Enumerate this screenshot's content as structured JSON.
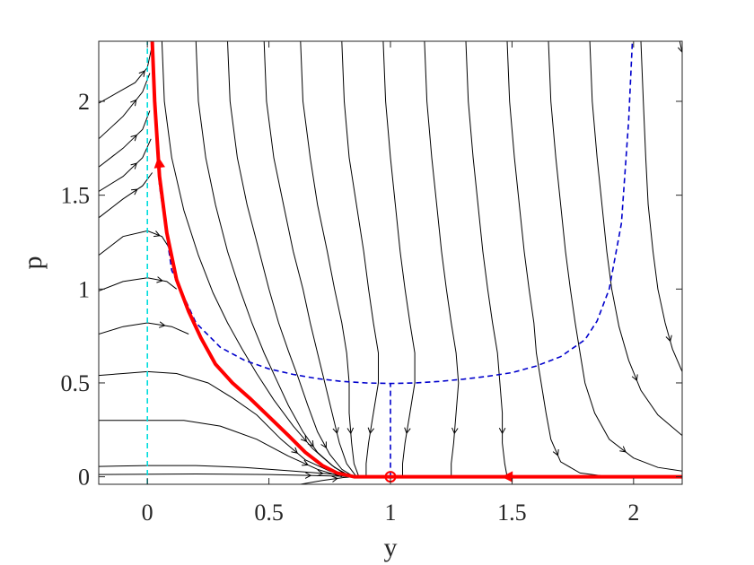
{
  "chart_data": {
    "type": "line",
    "title": "",
    "xlabel": "y",
    "ylabel": "p",
    "xlim": [
      -0.2,
      2.2
    ],
    "ylim": [
      -0.04,
      2.32
    ],
    "xticks": [
      0,
      0.5,
      1,
      1.5,
      2
    ],
    "xtick_labels": [
      "0",
      "0.5",
      "1",
      "1.5",
      "2"
    ],
    "yticks": [
      0,
      0.5,
      1,
      1.5,
      2
    ],
    "ytick_labels": [
      "0",
      "0.5",
      "1",
      "1.5",
      "2"
    ],
    "grid": false,
    "colors": {
      "stream": "#000000",
      "manifold": "#ff0000",
      "nullcline_p": "#0000cc",
      "nullcline_y": "#00dddd",
      "axes": "#262626"
    },
    "equilibrium_point": {
      "x": 1,
      "y": 0
    },
    "nullclines": [
      {
        "name": "",
        "style": "dashed",
        "color": "#0000cc",
        "points": [
          [
            0.02,
            2.3
          ],
          [
            0.05,
            1.55
          ],
          [
            0.1,
            1.1
          ],
          [
            0.2,
            0.82
          ],
          [
            0.3,
            0.69
          ],
          [
            0.4,
            0.62
          ],
          [
            0.5,
            0.575
          ],
          [
            0.6,
            0.545
          ],
          [
            0.7,
            0.523
          ],
          [
            0.8,
            0.508
          ],
          [
            0.9,
            0.5
          ],
          [
            1.0,
            0.497
          ],
          [
            1.1,
            0.5
          ],
          [
            1.2,
            0.508
          ],
          [
            1.3,
            0.52
          ],
          [
            1.4,
            0.535
          ],
          [
            1.5,
            0.555
          ],
          [
            1.6,
            0.59
          ],
          [
            1.7,
            0.64
          ],
          [
            1.8,
            0.73
          ],
          [
            1.85,
            0.83
          ],
          [
            1.9,
            1.0
          ],
          [
            1.95,
            1.35
          ],
          [
            1.98,
            1.9
          ],
          [
            1.995,
            2.32
          ]
        ]
      },
      {
        "name": "",
        "style": "dashed",
        "color": "#00dddd",
        "points": [
          [
            0,
            -0.04
          ],
          [
            0,
            2.32
          ]
        ]
      },
      {
        "name": "",
        "style": "dashed",
        "color": "#0000cc",
        "points": [
          [
            1,
            0
          ],
          [
            1,
            0.5
          ]
        ]
      }
    ],
    "manifolds": [
      {
        "name": "",
        "color": "#ff0000",
        "points": [
          [
            0.02,
            2.32
          ],
          [
            0.03,
            2.0
          ],
          [
            0.05,
            1.6
          ],
          [
            0.08,
            1.3
          ],
          [
            0.12,
            1.05
          ],
          [
            0.17,
            0.88
          ],
          [
            0.22,
            0.74
          ],
          [
            0.28,
            0.6
          ],
          [
            0.35,
            0.5
          ],
          [
            0.42,
            0.42
          ],
          [
            0.5,
            0.32
          ],
          [
            0.58,
            0.22
          ],
          [
            0.65,
            0.13
          ],
          [
            0.72,
            0.06
          ],
          [
            0.78,
            0.02
          ],
          [
            0.85,
            0.0
          ],
          [
            1.0,
            0.0
          ]
        ]
      },
      {
        "name": "",
        "color": "#ff0000",
        "points": [
          [
            1.0,
            0.0
          ],
          [
            2.2,
            0.0
          ]
        ]
      }
    ],
    "streamlines": [
      {
        "points": [
          [
            -0.2,
            1.99
          ],
          [
            -0.05,
            2.1
          ],
          [
            0.0,
            2.18
          ],
          [
            0.02,
            2.3
          ]
        ]
      },
      {
        "points": [
          [
            -0.2,
            1.8
          ],
          [
            -0.1,
            1.92
          ],
          [
            -0.02,
            2.05
          ],
          [
            0.01,
            2.15
          ]
        ]
      },
      {
        "points": [
          [
            -0.2,
            1.65
          ],
          [
            -0.1,
            1.75
          ],
          [
            -0.02,
            1.85
          ],
          [
            0.01,
            1.95
          ]
        ]
      },
      {
        "points": [
          [
            -0.2,
            1.52
          ],
          [
            -0.1,
            1.6
          ],
          [
            -0.02,
            1.7
          ],
          [
            0.015,
            1.8
          ]
        ]
      },
      {
        "points": [
          [
            -0.2,
            1.38
          ],
          [
            -0.1,
            1.48
          ],
          [
            -0.02,
            1.55
          ],
          [
            0.02,
            1.62
          ]
        ]
      },
      {
        "points": [
          [
            -0.2,
            1.18
          ],
          [
            -0.1,
            1.28
          ],
          [
            0.0,
            1.31
          ],
          [
            0.06,
            1.28
          ],
          [
            0.09,
            1.22
          ]
        ]
      },
      {
        "points": [
          [
            -0.2,
            0.99
          ],
          [
            -0.1,
            1.04
          ],
          [
            0.0,
            1.06
          ],
          [
            0.08,
            1.04
          ],
          [
            0.12,
            1.0
          ]
        ]
      },
      {
        "points": [
          [
            -0.2,
            0.76
          ],
          [
            -0.1,
            0.8
          ],
          [
            0.0,
            0.82
          ],
          [
            0.1,
            0.8
          ],
          [
            0.17,
            0.76
          ]
        ]
      },
      {
        "points": [
          [
            -0.2,
            0.54
          ],
          [
            -0.1,
            0.55
          ],
          [
            0.0,
            0.56
          ],
          [
            0.12,
            0.55
          ],
          [
            0.25,
            0.5
          ],
          [
            0.35,
            0.42
          ],
          [
            0.45,
            0.33
          ],
          [
            0.55,
            0.2
          ],
          [
            0.65,
            0.09
          ],
          [
            0.75,
            0.03
          ],
          [
            0.82,
            0.0
          ]
        ]
      },
      {
        "points": [
          [
            -0.2,
            0.3
          ],
          [
            0.0,
            0.3
          ],
          [
            0.15,
            0.3
          ],
          [
            0.3,
            0.27
          ],
          [
            0.45,
            0.2
          ],
          [
            0.58,
            0.11
          ],
          [
            0.7,
            0.04
          ],
          [
            0.8,
            0.0
          ]
        ]
      },
      {
        "points": [
          [
            -0.2,
            0.055
          ],
          [
            0.0,
            0.06
          ],
          [
            0.2,
            0.06
          ],
          [
            0.4,
            0.05
          ],
          [
            0.6,
            0.03
          ],
          [
            0.8,
            0.01
          ],
          [
            0.85,
            0.0
          ]
        ]
      },
      {
        "points": [
          [
            -0.2,
            0.012
          ],
          [
            0.2,
            0.015
          ],
          [
            0.5,
            0.012
          ],
          [
            0.8,
            0.003
          ],
          [
            0.85,
            0.0
          ]
        ]
      },
      {
        "points": [
          [
            0.63,
            -0.04
          ],
          [
            0.72,
            -0.02
          ],
          [
            0.8,
            -0.005
          ],
          [
            0.85,
            0.0
          ]
        ]
      },
      {
        "points": [
          [
            0.06,
            2.32
          ],
          [
            0.07,
            2.0
          ],
          [
            0.1,
            1.7
          ],
          [
            0.15,
            1.42
          ],
          [
            0.21,
            1.18
          ],
          [
            0.27,
            0.98
          ],
          [
            0.33,
            0.82
          ],
          [
            0.39,
            0.68
          ],
          [
            0.45,
            0.55
          ],
          [
            0.52,
            0.41
          ],
          [
            0.6,
            0.27
          ],
          [
            0.68,
            0.15
          ],
          [
            0.76,
            0.06
          ],
          [
            0.83,
            0.0
          ]
        ]
      },
      {
        "points": [
          [
            0.2,
            2.32
          ],
          [
            0.21,
            2.0
          ],
          [
            0.24,
            1.7
          ],
          [
            0.28,
            1.45
          ],
          [
            0.33,
            1.2
          ],
          [
            0.38,
            1.0
          ],
          [
            0.43,
            0.82
          ],
          [
            0.48,
            0.66
          ],
          [
            0.53,
            0.52
          ],
          [
            0.58,
            0.38
          ],
          [
            0.64,
            0.24
          ],
          [
            0.7,
            0.13
          ],
          [
            0.77,
            0.05
          ],
          [
            0.84,
            0.0
          ]
        ]
      },
      {
        "points": [
          [
            0.33,
            2.32
          ],
          [
            0.34,
            2.0
          ],
          [
            0.37,
            1.7
          ],
          [
            0.41,
            1.45
          ],
          [
            0.46,
            1.2
          ],
          [
            0.5,
            1.0
          ],
          [
            0.54,
            0.82
          ],
          [
            0.58,
            0.67
          ],
          [
            0.62,
            0.53
          ],
          [
            0.66,
            0.38
          ],
          [
            0.7,
            0.24
          ],
          [
            0.75,
            0.12
          ],
          [
            0.8,
            0.04
          ],
          [
            0.85,
            0.0
          ]
        ]
      },
      {
        "points": [
          [
            0.48,
            2.32
          ],
          [
            0.49,
            2.0
          ],
          [
            0.52,
            1.7
          ],
          [
            0.56,
            1.45
          ],
          [
            0.6,
            1.2
          ],
          [
            0.64,
            1.0
          ],
          [
            0.67,
            0.82
          ],
          [
            0.7,
            0.66
          ],
          [
            0.73,
            0.5
          ],
          [
            0.76,
            0.34
          ],
          [
            0.79,
            0.18
          ],
          [
            0.82,
            0.07
          ],
          [
            0.86,
            0.0
          ]
        ]
      },
      {
        "points": [
          [
            0.63,
            2.32
          ],
          [
            0.64,
            2.0
          ],
          [
            0.67,
            1.7
          ],
          [
            0.7,
            1.45
          ],
          [
            0.74,
            1.2
          ],
          [
            0.77,
            1.0
          ],
          [
            0.8,
            0.82
          ],
          [
            0.82,
            0.66
          ],
          [
            0.83,
            0.5
          ],
          [
            0.83,
            0.34
          ],
          [
            0.84,
            0.18
          ],
          [
            0.85,
            0.07
          ],
          [
            0.87,
            0.0
          ]
        ]
      },
      {
        "points": [
          [
            0.8,
            2.32
          ],
          [
            0.81,
            2.0
          ],
          [
            0.83,
            1.7
          ],
          [
            0.86,
            1.45
          ],
          [
            0.89,
            1.2
          ],
          [
            0.91,
            1.0
          ],
          [
            0.93,
            0.82
          ],
          [
            0.95,
            0.66
          ],
          [
            0.95,
            0.5
          ],
          [
            0.93,
            0.34
          ],
          [
            0.91,
            0.18
          ],
          [
            0.9,
            0.07
          ],
          [
            0.9,
            0.0
          ]
        ]
      },
      {
        "points": [
          [
            0.97,
            2.32
          ],
          [
            0.98,
            2.0
          ],
          [
            1.0,
            1.7
          ],
          [
            1.02,
            1.45
          ],
          [
            1.04,
            1.2
          ],
          [
            1.06,
            1.0
          ],
          [
            1.08,
            0.82
          ],
          [
            1.1,
            0.66
          ],
          [
            1.1,
            0.5
          ],
          [
            1.08,
            0.34
          ],
          [
            1.06,
            0.18
          ],
          [
            1.05,
            0.07
          ],
          [
            1.05,
            0.0
          ]
        ]
      },
      {
        "points": [
          [
            1.14,
            2.32
          ],
          [
            1.15,
            2.0
          ],
          [
            1.17,
            1.7
          ],
          [
            1.19,
            1.45
          ],
          [
            1.21,
            1.2
          ],
          [
            1.23,
            1.0
          ],
          [
            1.25,
            0.82
          ],
          [
            1.27,
            0.66
          ],
          [
            1.28,
            0.5
          ],
          [
            1.27,
            0.34
          ],
          [
            1.26,
            0.18
          ],
          [
            1.25,
            0.07
          ],
          [
            1.25,
            0.0
          ]
        ]
      },
      {
        "points": [
          [
            1.31,
            2.32
          ],
          [
            1.32,
            2.0
          ],
          [
            1.34,
            1.7
          ],
          [
            1.36,
            1.45
          ],
          [
            1.38,
            1.2
          ],
          [
            1.4,
            1.0
          ],
          [
            1.42,
            0.82
          ],
          [
            1.44,
            0.66
          ],
          [
            1.45,
            0.5
          ],
          [
            1.46,
            0.34
          ],
          [
            1.46,
            0.18
          ],
          [
            1.47,
            0.07
          ],
          [
            1.48,
            0.0
          ]
        ]
      },
      {
        "points": [
          [
            1.48,
            2.32
          ],
          [
            1.49,
            2.0
          ],
          [
            1.51,
            1.7
          ],
          [
            1.53,
            1.45
          ],
          [
            1.55,
            1.2
          ],
          [
            1.57,
            1.0
          ],
          [
            1.59,
            0.82
          ],
          [
            1.6,
            0.66
          ],
          [
            1.62,
            0.5
          ],
          [
            1.64,
            0.34
          ],
          [
            1.66,
            0.2
          ],
          [
            1.7,
            0.08
          ],
          [
            1.78,
            0.02
          ],
          [
            1.9,
            0.0
          ]
        ]
      },
      {
        "points": [
          [
            1.65,
            2.32
          ],
          [
            1.66,
            2.0
          ],
          [
            1.68,
            1.7
          ],
          [
            1.7,
            1.45
          ],
          [
            1.72,
            1.2
          ],
          [
            1.74,
            1.0
          ],
          [
            1.76,
            0.82
          ],
          [
            1.78,
            0.66
          ],
          [
            1.8,
            0.5
          ],
          [
            1.84,
            0.34
          ],
          [
            1.9,
            0.2
          ],
          [
            2.0,
            0.1
          ],
          [
            2.1,
            0.05
          ],
          [
            2.2,
            0.03
          ]
        ]
      },
      {
        "points": [
          [
            1.82,
            2.32
          ],
          [
            1.83,
            2.0
          ],
          [
            1.85,
            1.7
          ],
          [
            1.87,
            1.45
          ],
          [
            1.89,
            1.2
          ],
          [
            1.91,
            1.0
          ],
          [
            1.94,
            0.8
          ],
          [
            1.98,
            0.62
          ],
          [
            2.03,
            0.46
          ],
          [
            2.1,
            0.33
          ],
          [
            2.2,
            0.22
          ]
        ]
      },
      {
        "points": [
          [
            2.03,
            2.32
          ],
          [
            2.04,
            2.0
          ],
          [
            2.05,
            1.7
          ],
          [
            2.06,
            1.45
          ],
          [
            2.08,
            1.2
          ],
          [
            2.1,
            1.0
          ],
          [
            2.13,
            0.82
          ],
          [
            2.16,
            0.68
          ],
          [
            2.2,
            0.56
          ]
        ]
      },
      {
        "points": [
          [
            2.19,
            2.32
          ],
          [
            2.2,
            2.26
          ]
        ]
      }
    ]
  }
}
